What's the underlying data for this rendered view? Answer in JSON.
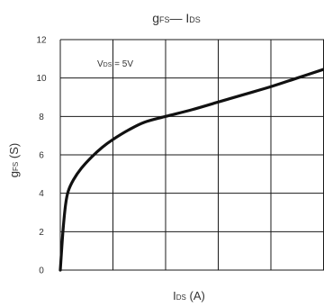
{
  "chart_data": {
    "type": "line",
    "title": {
      "parts": [
        "g",
        "FS",
        "— I",
        "DS"
      ]
    },
    "ylabel": {
      "parts": [
        "g",
        "FS",
        " (S)"
      ]
    },
    "xlabel": {
      "parts": [
        "I",
        "DS",
        " (A)"
      ]
    },
    "annotation": {
      "parts": [
        "V",
        "DS",
        " = 5V"
      ]
    },
    "yticks": [
      0,
      2,
      4,
      6,
      8,
      10,
      12
    ],
    "ylim": [
      0,
      12
    ],
    "xlim": [
      0,
      5
    ],
    "x_tick_labels_shown": false,
    "grid": true,
    "series": [
      {
        "color": "#111111",
        "points": [
          [
            0,
            0
          ],
          [
            0.05,
            2.0
          ],
          [
            0.1,
            3.4
          ],
          [
            0.15,
            4.1
          ],
          [
            0.25,
            4.7
          ],
          [
            0.4,
            5.3
          ],
          [
            0.6,
            5.9
          ],
          [
            0.8,
            6.4
          ],
          [
            1.0,
            6.8
          ],
          [
            1.3,
            7.3
          ],
          [
            1.6,
            7.7
          ],
          [
            2.0,
            8.0
          ],
          [
            2.5,
            8.35
          ],
          [
            3.0,
            8.75
          ],
          [
            3.5,
            9.15
          ],
          [
            4.0,
            9.55
          ],
          [
            4.5,
            10.0
          ],
          [
            5.0,
            10.45
          ]
        ]
      }
    ]
  }
}
